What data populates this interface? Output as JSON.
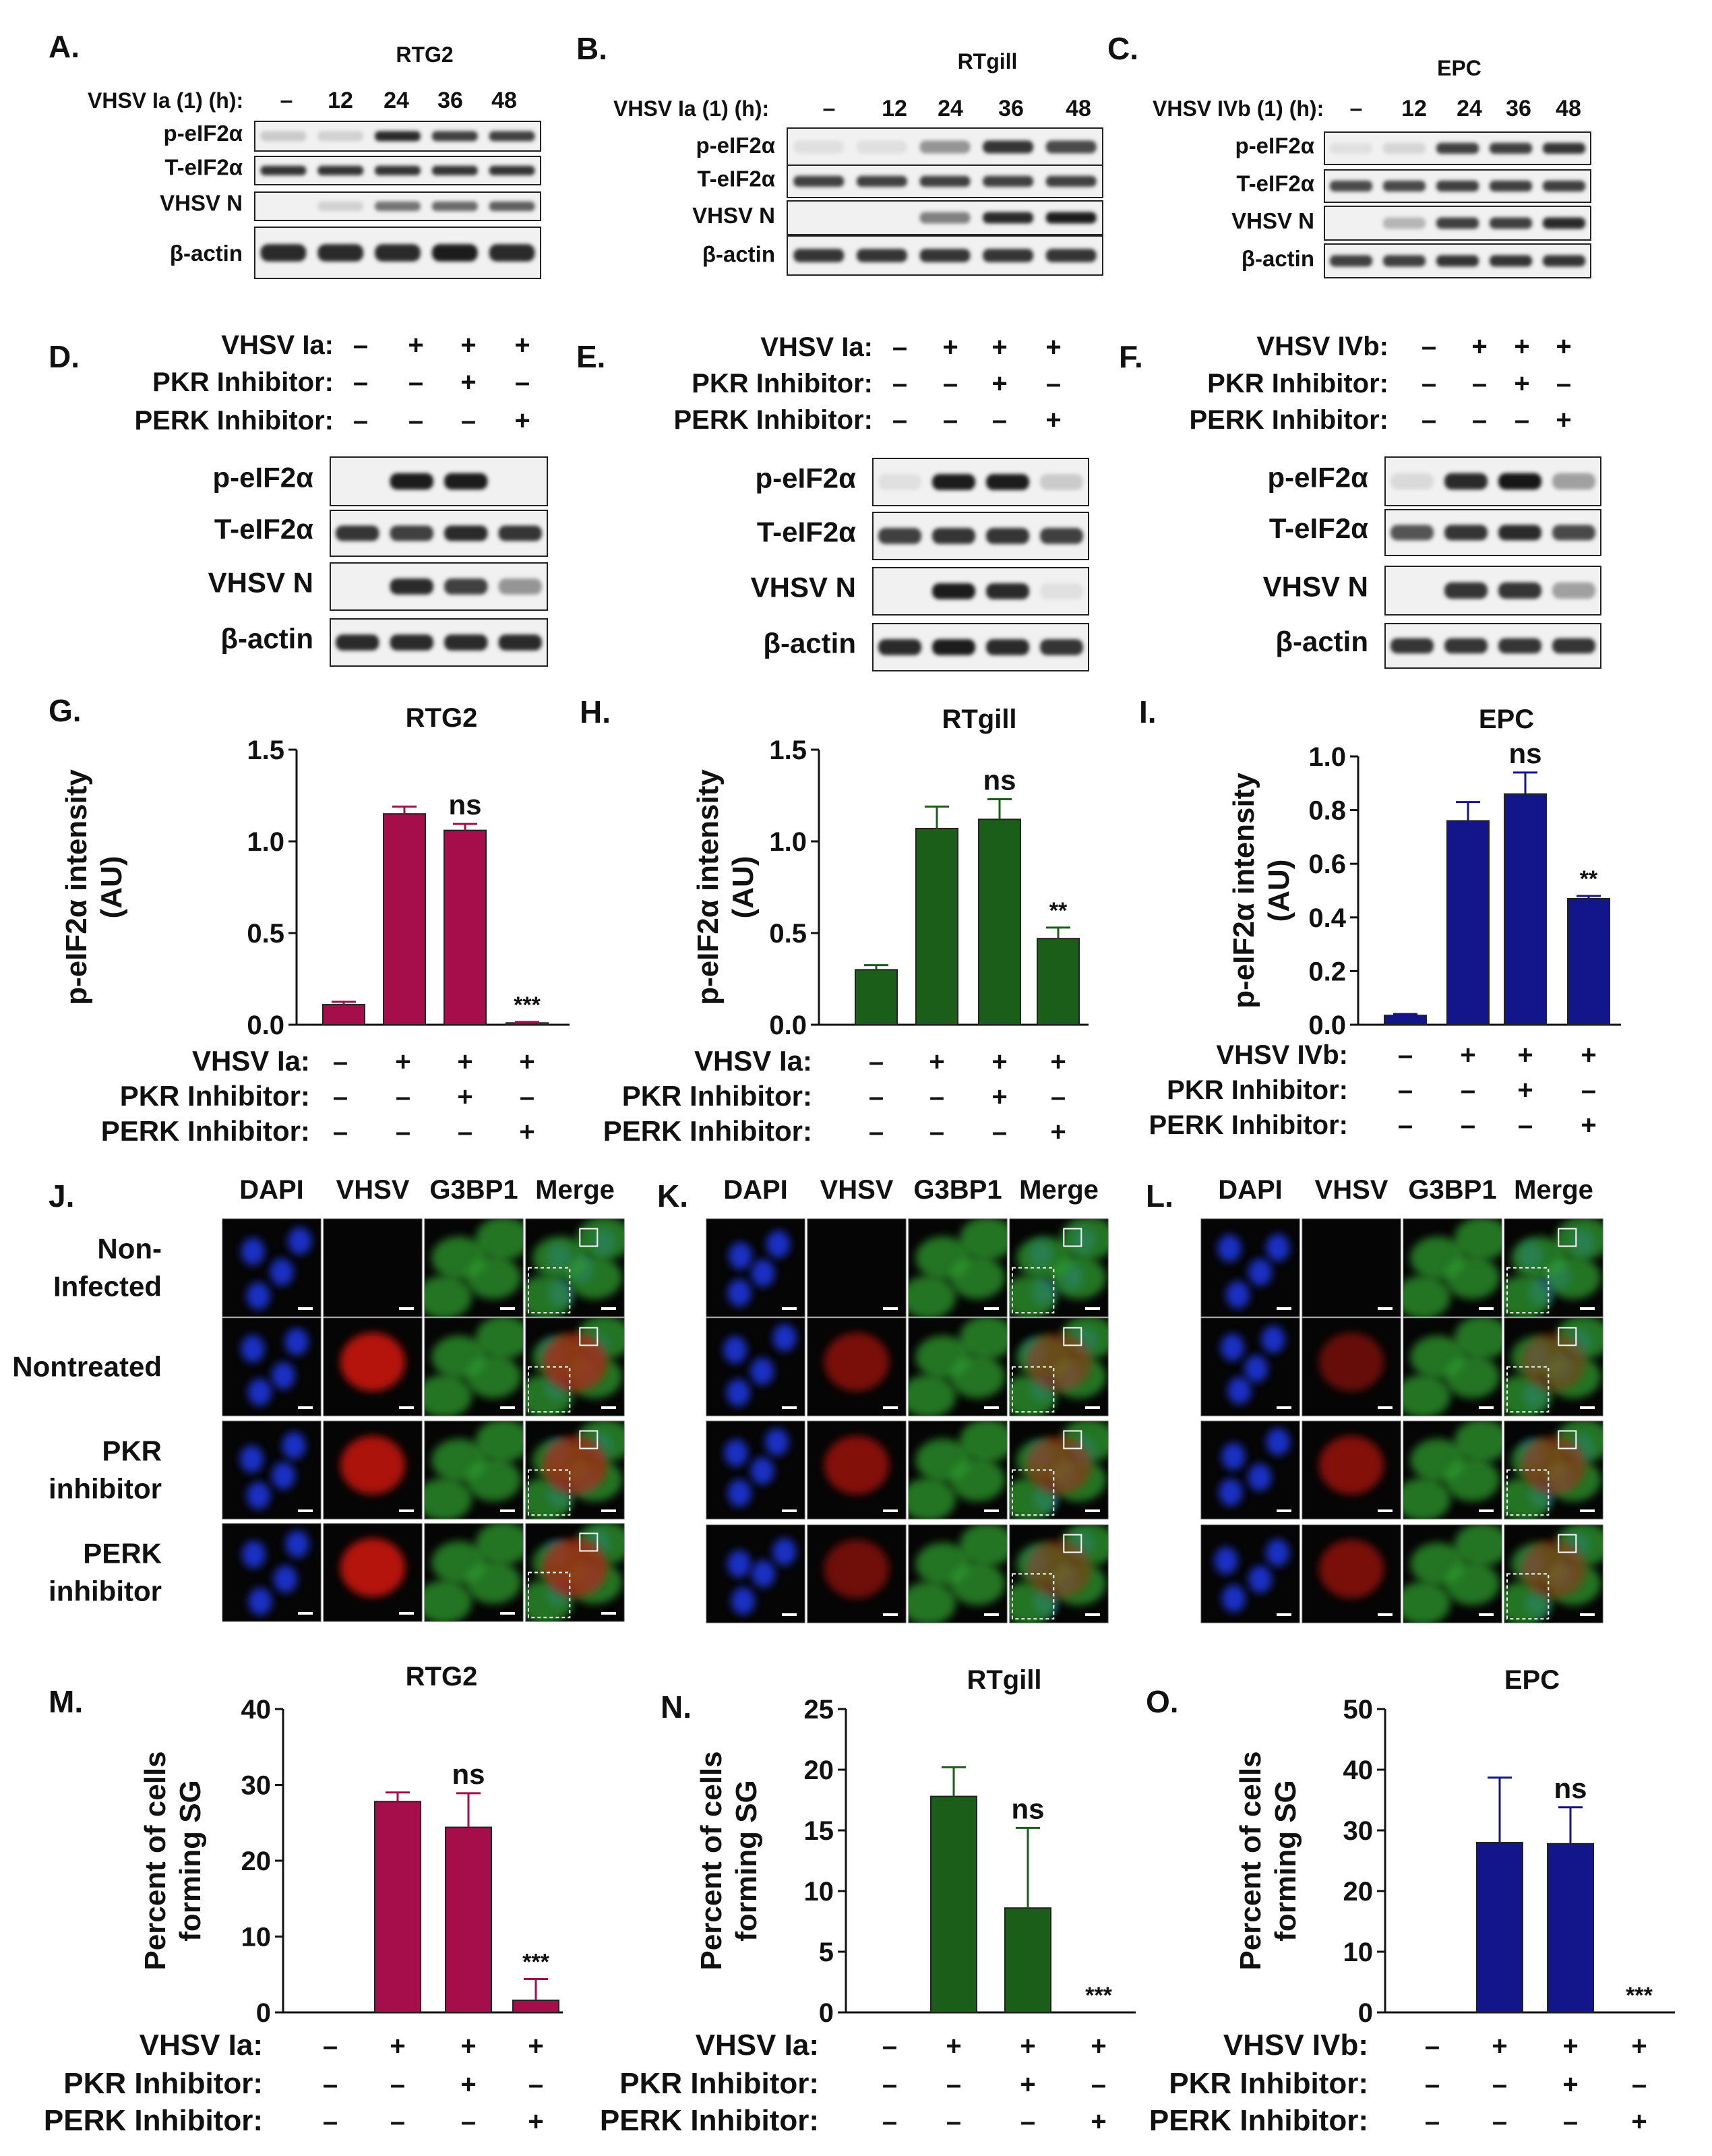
{
  "colors": {
    "RTG2": "#a50d4b",
    "RTgill": "#1a5e1a",
    "EPC": "#12168a",
    "red_channel": "#c8140f",
    "green_channel": "#2f9a2f",
    "blue_channel": "#1726a8"
  },
  "blots": [
    {
      "panel": "A.",
      "title": "RTG2",
      "cond_label": "VHSV Ia (1) (h):",
      "times": [
        "–",
        "12",
        "24",
        "36",
        "48"
      ],
      "bands": [
        {
          "label": "p-eIF2α",
          "levels": [
            0.15,
            0.12,
            0.9,
            0.8,
            0.8
          ]
        },
        {
          "label": "T-eIF2α",
          "levels": [
            0.85,
            0.85,
            0.85,
            0.85,
            0.85
          ]
        },
        {
          "label": "VHSV N",
          "levels": [
            0.0,
            0.12,
            0.55,
            0.6,
            0.65
          ]
        },
        {
          "label": "β-actin",
          "levels": [
            0.9,
            0.9,
            0.9,
            0.95,
            0.9
          ]
        }
      ]
    },
    {
      "panel": "B.",
      "title": "RTgill",
      "cond_label": "VHSV Ia (1) (h):",
      "times": [
        "–",
        "12",
        "24",
        "36",
        "48"
      ],
      "bands": [
        {
          "label": "p-eIF2α",
          "levels": [
            0.05,
            0.05,
            0.4,
            0.85,
            0.75
          ]
        },
        {
          "label": "T-eIF2α",
          "levels": [
            0.8,
            0.8,
            0.8,
            0.8,
            0.8
          ]
        },
        {
          "label": "VHSV N",
          "levels": [
            0.0,
            0.0,
            0.5,
            0.9,
            0.95
          ]
        },
        {
          "label": "β-actin",
          "levels": [
            0.85,
            0.85,
            0.85,
            0.85,
            0.85
          ]
        }
      ]
    },
    {
      "panel": "C.",
      "title": "EPC",
      "cond_label": "VHSV IVb (1) (h):",
      "times": [
        "–",
        "12",
        "24",
        "36",
        "48"
      ],
      "bands": [
        {
          "label": "p-eIF2α",
          "levels": [
            0.05,
            0.1,
            0.8,
            0.8,
            0.85
          ]
        },
        {
          "label": "T-eIF2α",
          "levels": [
            0.75,
            0.75,
            0.8,
            0.8,
            0.8
          ]
        },
        {
          "label": "VHSV N",
          "levels": [
            0.0,
            0.25,
            0.8,
            0.8,
            0.9
          ]
        },
        {
          "label": "β-actin",
          "levels": [
            0.8,
            0.8,
            0.85,
            0.85,
            0.85
          ]
        }
      ]
    }
  ],
  "inhib_blots": [
    {
      "panel": "D.",
      "virus_label": "VHSV Ia:",
      "bands": [
        {
          "label": "p-eIF2α",
          "levels": [
            0.0,
            0.95,
            0.95,
            0.0
          ]
        },
        {
          "label": "T-eIF2α",
          "levels": [
            0.85,
            0.8,
            0.9,
            0.85
          ]
        },
        {
          "label": "VHSV N",
          "levels": [
            0.0,
            0.9,
            0.8,
            0.4
          ]
        },
        {
          "label": "β-actin",
          "levels": [
            0.9,
            0.9,
            0.9,
            0.9
          ]
        }
      ]
    },
    {
      "panel": "E.",
      "virus_label": "VHSV Ia:",
      "bands": [
        {
          "label": "p-eIF2α",
          "levels": [
            0.05,
            0.95,
            0.95,
            0.15
          ]
        },
        {
          "label": "T-eIF2α",
          "levels": [
            0.8,
            0.85,
            0.85,
            0.8
          ]
        },
        {
          "label": "VHSV N",
          "levels": [
            0.0,
            0.95,
            0.9,
            0.05
          ]
        },
        {
          "label": "β-actin",
          "levels": [
            0.9,
            0.95,
            0.9,
            0.85
          ]
        }
      ]
    },
    {
      "panel": "F.",
      "virus_label": "VHSV IVb:",
      "bands": [
        {
          "label": "p-eIF2α",
          "levels": [
            0.08,
            0.9,
            1.0,
            0.35
          ]
        },
        {
          "label": "T-eIF2α",
          "levels": [
            0.7,
            0.85,
            0.9,
            0.75
          ]
        },
        {
          "label": "VHSV N",
          "levels": [
            0.0,
            0.85,
            0.85,
            0.35
          ]
        },
        {
          "label": "β-actin",
          "levels": [
            0.85,
            0.85,
            0.85,
            0.85
          ]
        }
      ]
    }
  ],
  "condition_rows": {
    "pkr": "PKR Inhibitor:",
    "perk": "PERK Inhibitor:",
    "virus_signs": [
      "–",
      "+",
      "+",
      "+"
    ],
    "pkr_signs": [
      "–",
      "–",
      "+",
      "–"
    ],
    "perk_signs": [
      "–",
      "–",
      "–",
      "+"
    ]
  },
  "chart_data": [
    {
      "panel": "G.",
      "type": "bar",
      "title": "RTG2",
      "ylabel": "p-eIF2α intensity\n(AU)",
      "ylim": [
        0,
        1.5
      ],
      "yticks": [
        "0.0",
        "0.5",
        "1.0",
        "1.5"
      ],
      "values": [
        0.11,
        1.15,
        1.06,
        0.01
      ],
      "errors": [
        0.015,
        0.04,
        0.035,
        0.005
      ],
      "annotations": [
        "",
        "",
        "ns",
        "***"
      ],
      "virus_label": "VHSV Ia:",
      "color": "#a50d4b"
    },
    {
      "panel": "H.",
      "type": "bar",
      "title": "RTgill",
      "ylabel": "p-eIF2α intensity\n(AU)",
      "ylim": [
        0,
        1.5
      ],
      "yticks": [
        "0.0",
        "0.5",
        "1.0",
        "1.5"
      ],
      "values": [
        0.3,
        1.07,
        1.12,
        0.47
      ],
      "errors": [
        0.025,
        0.12,
        0.11,
        0.06
      ],
      "annotations": [
        "",
        "",
        "ns",
        "**"
      ],
      "virus_label": "VHSV Ia:",
      "color": "#1a5e1a"
    },
    {
      "panel": "I.",
      "type": "bar",
      "title": "EPC",
      "ylabel": "p-eIF2α intensity\n(AU)",
      "ylim": [
        0,
        1.0
      ],
      "yticks": [
        "0.0",
        "0.2",
        "0.4",
        "0.6",
        "0.8",
        "1.0"
      ],
      "values": [
        0.035,
        0.76,
        0.86,
        0.47
      ],
      "errors": [
        0.005,
        0.07,
        0.08,
        0.01
      ],
      "annotations": [
        "",
        "",
        "ns",
        "**"
      ],
      "virus_label": "VHSV IVb:",
      "color": "#12168a"
    },
    {
      "panel": "M.",
      "type": "bar",
      "title": "RTG2",
      "ylabel": "Percent of cells\nforming SG",
      "ylim": [
        0,
        40
      ],
      "yticks": [
        "0",
        "10",
        "20",
        "30",
        "40"
      ],
      "values": [
        0,
        27.8,
        24.4,
        1.6
      ],
      "errors": [
        0,
        1.2,
        4.5,
        2.8
      ],
      "annotations": [
        "",
        "",
        "ns",
        "***"
      ],
      "virus_label": "VHSV Ia:",
      "color": "#a50d4b"
    },
    {
      "panel": "N.",
      "type": "bar",
      "title": "RTgill",
      "ylabel": "Percent of cells\nforming SG",
      "ylim": [
        0,
        25
      ],
      "yticks": [
        "0",
        "5",
        "10",
        "15",
        "20",
        "25"
      ],
      "values": [
        0,
        17.8,
        8.6,
        0
      ],
      "errors": [
        0,
        2.4,
        6.6,
        0
      ],
      "annotations": [
        "",
        "",
        "ns",
        "***"
      ],
      "virus_label": "VHSV Ia:",
      "color": "#1a5e1a"
    },
    {
      "panel": "O.",
      "type": "bar",
      "title": "EPC",
      "ylabel": "Percent of cells\nforming SG",
      "ylim": [
        0,
        50
      ],
      "yticks": [
        "0",
        "10",
        "20",
        "30",
        "40",
        "50"
      ],
      "values": [
        0,
        28.0,
        27.8,
        0
      ],
      "errors": [
        0,
        10.7,
        6.0,
        0
      ],
      "annotations": [
        "",
        "",
        "ns",
        "***"
      ],
      "virus_label": "VHSV IVb:",
      "color": "#12168a"
    }
  ],
  "microscopy": {
    "panels": [
      "J.",
      "K.",
      "L."
    ],
    "channels": [
      "DAPI",
      "VHSV",
      "G3BP1",
      "Merge"
    ],
    "row_labels": [
      "Non-\nInfected",
      "Nontreated",
      "PKR\ninhibitor",
      "PERK\ninhibitor"
    ],
    "red_levels": [
      [
        0.0,
        0.9,
        0.85,
        0.9
      ],
      [
        0.0,
        0.6,
        0.65,
        0.55
      ],
      [
        0.0,
        0.5,
        0.65,
        0.6
      ]
    ]
  }
}
